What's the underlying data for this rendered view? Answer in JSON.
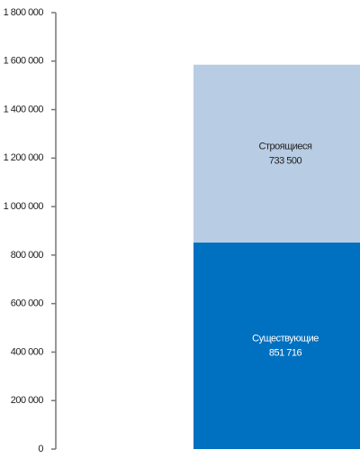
{
  "chart_data": {
    "type": "stacked-bar",
    "categories": [
      null
    ],
    "series": [
      {
        "name": "Существующие",
        "color": "#0070c0",
        "values": [
          851716
        ],
        "value_labels": [
          "851 716"
        ],
        "label_color": "#ffffff"
      },
      {
        "name": "Строящиеся",
        "color": "#b8cce4",
        "values": [
          733500
        ],
        "value_labels": [
          "733 500"
        ],
        "label_color": "#222222"
      }
    ],
    "ylim": [
      0,
      1800000
    ],
    "yticks": [
      0,
      {
        "value": 200000,
        "label": "200 000"
      },
      {
        "value": 400000,
        "label": "400 000"
      },
      {
        "value": 600000,
        "label": "600 000"
      },
      {
        "value": 800000,
        "label": "800 000"
      },
      {
        "value": 1000000,
        "label": "1 000 000"
      },
      {
        "value": 1200000,
        "label": "1 200 000"
      },
      {
        "value": 1400000,
        "label": "1 400 000"
      },
      {
        "value": 1600000,
        "label": "1 600 000"
      },
      {
        "value": 1800000,
        "label": "1 800 000"
      }
    ]
  }
}
